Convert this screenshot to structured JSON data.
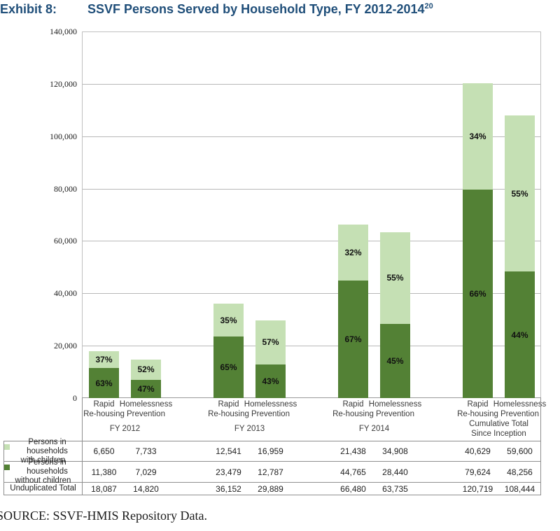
{
  "title": {
    "exhibit": "Exhibit 8:",
    "text": "SSVF Persons Served by Household Type, FY 2012-2014",
    "superscript": "20"
  },
  "source": "SOURCE: SSVF-HMIS Repository Data.",
  "colors": {
    "title_blue": "#1f4e79",
    "dark_green": "#538135",
    "light_green": "#c5e0b4",
    "gridline": "#b8b8b8",
    "plot_border": "#c0c0c0",
    "axis_line": "#9a9a9a",
    "table_border": "#8f8f8f"
  },
  "chart_data": {
    "type": "bar",
    "stacked": true,
    "title": "SSVF Persons Served by Household Type, FY 2012-2014",
    "xlabel": "",
    "ylabel": "",
    "ylim": [
      0,
      140000
    ],
    "ytick_interval": 20000,
    "ytick_labels": [
      "0",
      "20,000",
      "40,000",
      "60,000",
      "80,000",
      "100,000",
      "120,000",
      "140,000"
    ],
    "grid": true,
    "legend_position": "table-left",
    "groups": [
      "FY 2012",
      "FY 2013",
      "FY 2014",
      "Cumulative Total Since Inception"
    ],
    "categories_per_group": [
      "Rapid Re-housing",
      "Homelessness Prevention"
    ],
    "series": [
      {
        "name": "Persons in households with children",
        "color": "#c5e0b4",
        "values": [
          6650,
          7733,
          12541,
          16959,
          21438,
          34908,
          40629,
          59600
        ],
        "pct_labels": [
          "37%",
          "52%",
          "35%",
          "57%",
          "32%",
          "55%",
          "34%",
          "55%"
        ]
      },
      {
        "name": "Persons in households without children",
        "color": "#538135",
        "values": [
          11380,
          7029,
          23479,
          12787,
          44765,
          28440,
          79624,
          48256
        ],
        "pct_labels": [
          "63%",
          "47%",
          "65%",
          "43%",
          "67%",
          "45%",
          "66%",
          "44%"
        ]
      }
    ],
    "totals": {
      "name": "Unduplicated Total",
      "values": [
        18087,
        14820,
        36152,
        29889,
        66480,
        63735,
        120719,
        108444
      ]
    }
  },
  "axis": {
    "bar_category_lines": [
      [
        "Rapid",
        "Re-housing"
      ],
      [
        "Homelessness",
        "Prevention"
      ]
    ],
    "group_label_lines": [
      [
        "FY 2012"
      ],
      [
        "FY 2013"
      ],
      [
        "FY 2014"
      ],
      [
        "Cumulative Total",
        "Since Inception"
      ]
    ]
  },
  "table": {
    "rows": [
      {
        "label_lines": [
          "Persons in households",
          "with children"
        ],
        "swatch": "#c5e0b4",
        "values": [
          "6,650",
          "7,733",
          "12,541",
          "16,959",
          "21,438",
          "34,908",
          "40,629",
          "59,600"
        ]
      },
      {
        "label_lines": [
          "Persons in households",
          "without children"
        ],
        "swatch": "#538135",
        "values": [
          "11,380",
          "7,029",
          "23,479",
          "12,787",
          "44,765",
          "28,440",
          "79,624",
          "48,256"
        ]
      },
      {
        "label_lines": [
          "Unduplicated Total"
        ],
        "swatch": null,
        "values": [
          "18,087",
          "14,820",
          "36,152",
          "29,889",
          "66,480",
          "63,735",
          "120,719",
          "108,444"
        ]
      }
    ]
  }
}
